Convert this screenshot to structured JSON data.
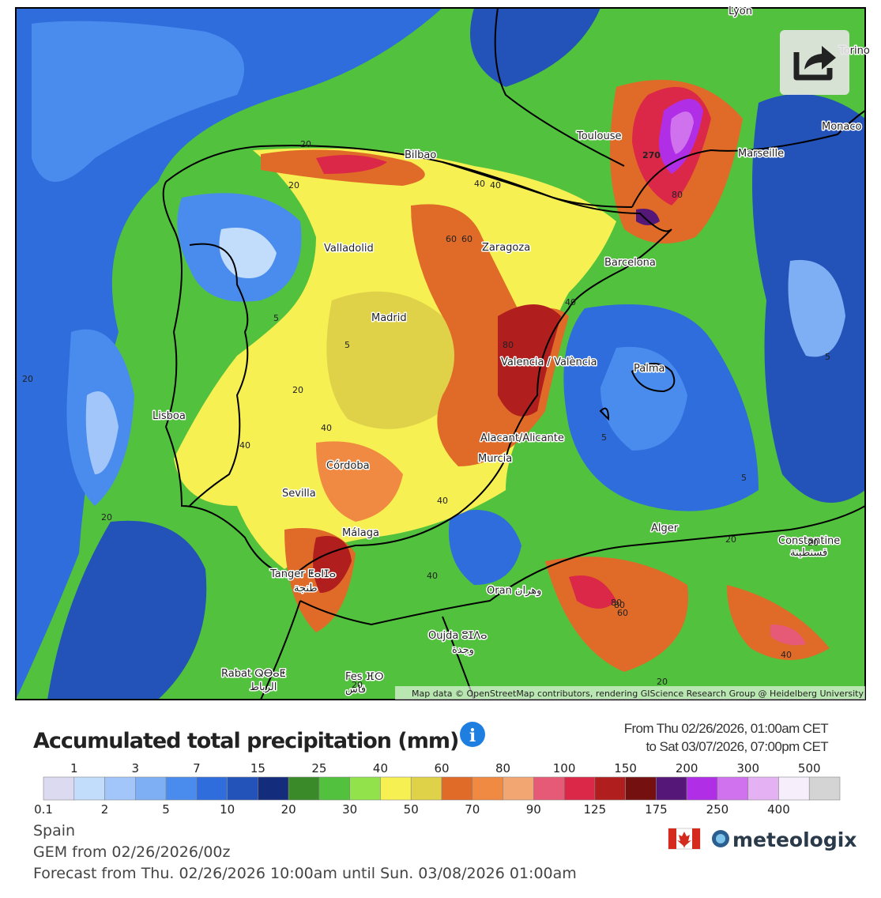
{
  "map": {
    "labels": [
      "Lyon",
      "Torino",
      "Toulouse",
      "Monaco",
      "Marseille",
      "Bilbao",
      "Valladolid",
      "Zaragoza",
      "Barcelona",
      "Madrid",
      "Valencia / València",
      "Palma",
      "Lisboa",
      "Alacant/Alicante",
      "Murcia",
      "Córdoba",
      "Sevilla",
      "Málaga",
      "Tanger ⵟⴰⵏⵊⴰ",
      "طنجة",
      "Oran وهران",
      "Alger",
      "Constantine",
      "قسنطينة",
      "Oujda ⵓⵊⴷⴰ",
      "وجدة",
      "Rabat ⵕⴱⴰⵟ",
      "الرباط",
      "Fes ⴼⵙ",
      "فاس"
    ],
    "contour_labels": [
      270,
      80,
      80,
      60,
      40,
      20,
      20,
      40,
      40,
      60,
      40,
      80,
      5,
      20,
      40,
      20,
      5,
      20,
      5,
      5,
      40,
      20,
      20,
      80,
      60,
      40,
      40,
      20,
      20,
      5
    ],
    "attribution": "Map data © OpenStreetMap contributors, rendering GIScience Research Group @ Heidelberg University"
  },
  "header": {
    "title": "Accumulated total precipitation (mm)",
    "period_from": "From Thu 02/26/2026, 01:00am CET",
    "period_to": "to Sat 03/07/2026, 07:00pm CET"
  },
  "legend": {
    "levels": [
      0.1,
      1,
      2,
      3,
      5,
      7,
      10,
      15,
      20,
      25,
      30,
      40,
      50,
      60,
      70,
      80,
      90,
      100,
      125,
      150,
      175,
      200,
      250,
      300,
      400,
      500
    ],
    "colors": [
      "#dcdaf0",
      "#c2dcfc",
      "#a2c6fa",
      "#7eaef4",
      "#4a8cee",
      "#2f6cdc",
      "#2352b8",
      "#142c7c",
      "#3a8a2a",
      "#52c23e",
      "#92e24c",
      "#f6f052",
      "#e0d248",
      "#e06a28",
      "#f08a42",
      "#f2a672",
      "#e65a78",
      "#dc2848",
      "#b01e1e",
      "#741010",
      "#561878",
      "#b02ee6",
      "#d072ee",
      "#e4b2f2",
      "#f6eefa",
      "#d4d4d4"
    ]
  },
  "footer": {
    "region": "Spain",
    "model": "GEM from 02/26/2026/00z",
    "forecast": "Forecast from Thu. 02/26/2026 10:00am until Sun. 03/08/2026 01:00am",
    "brand": "meteologix"
  }
}
